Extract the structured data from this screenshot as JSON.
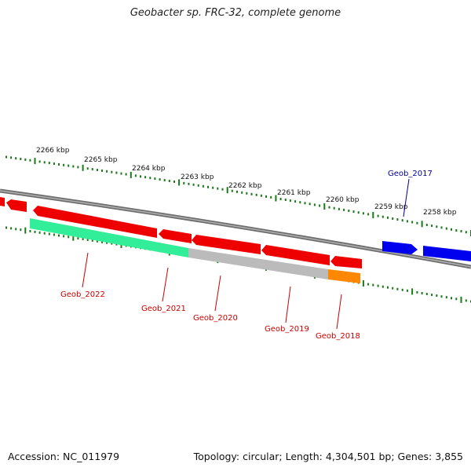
{
  "title": "Geobacter sp. FRC-32, complete genome",
  "accession": "Accession: NC_011979",
  "summary": "Topology: circular; Length: 4,304,501 bp; Genes: 3,855",
  "colors": {
    "backbone": "#808080",
    "forward_gene": "#0000ee",
    "reverse_gene": "#ee0000",
    "tick": "#1a7a1a",
    "label_forward": "#00008b",
    "label_reverse": "#cc0000"
  },
  "kbp_ticks": [
    "2266 kbp",
    "2265 kbp",
    "2264 kbp",
    "2263 kbp",
    "2262 kbp",
    "2261 kbp",
    "2260 kbp",
    "2259 kbp",
    "2258 kbp"
  ],
  "gene_labels": [
    {
      "name": "Geob_2017",
      "strand": "forward"
    },
    {
      "name": "Geob_2022",
      "strand": "reverse"
    },
    {
      "name": "Geob_2021",
      "strand": "reverse"
    },
    {
      "name": "Geob_2020",
      "strand": "reverse"
    },
    {
      "name": "Geob_2019",
      "strand": "reverse"
    },
    {
      "name": "Geob_2018",
      "strand": "reverse"
    }
  ],
  "feature_track_colors": [
    "#33ee99",
    "#bbbbbb",
    "#ff8800"
  ]
}
